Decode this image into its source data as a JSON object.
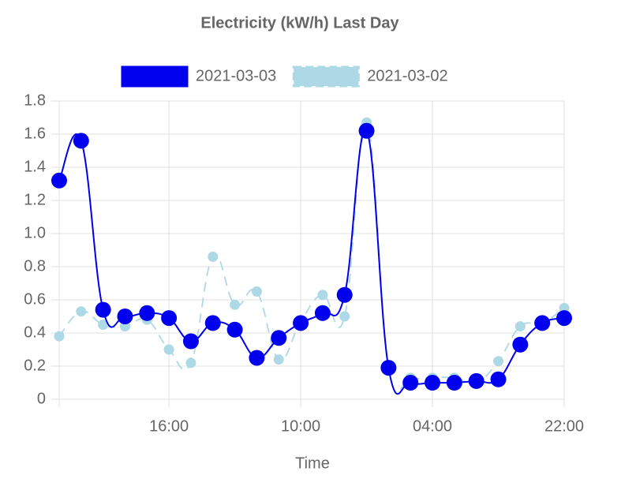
{
  "chart_data": {
    "type": "line",
    "title": "Electricity (kW/h) Last Day",
    "x_label": "Time",
    "categories": [
      null,
      null,
      null,
      null,
      null,
      "16:00",
      null,
      null,
      null,
      null,
      null,
      "10:00",
      null,
      null,
      null,
      null,
      null,
      "04:00",
      null,
      null,
      null,
      null,
      null,
      "22:00"
    ],
    "series": [
      {
        "name": "2021-03-03",
        "color": "#0000ee",
        "dashed": false,
        "values": [
          1.32,
          1.56,
          0.54,
          0.5,
          0.52,
          0.49,
          0.35,
          0.46,
          0.42,
          0.25,
          0.37,
          0.46,
          0.52,
          0.63,
          1.62,
          0.19,
          0.1,
          0.1,
          0.1,
          0.11,
          0.12,
          0.33,
          0.46,
          0.49
        ]
      },
      {
        "name": "2021-03-02",
        "color": "#add8e6",
        "dashed": true,
        "values": [
          0.38,
          0.53,
          0.45,
          0.44,
          0.48,
          0.3,
          0.22,
          0.86,
          0.57,
          0.65,
          0.24,
          0.47,
          0.63,
          0.5,
          1.67,
          0.19,
          0.13,
          0.13,
          0.13,
          0.1,
          0.23,
          0.44,
          0.46,
          0.55
        ]
      }
    ],
    "ylim": [
      0,
      1.8
    ],
    "yticks": [
      0,
      0.2,
      0.4,
      0.6,
      0.8,
      {
        "value": 1.0,
        "label": "1.0"
      },
      1.2,
      1.4,
      1.6,
      1.8
    ],
    "grid": true
  }
}
